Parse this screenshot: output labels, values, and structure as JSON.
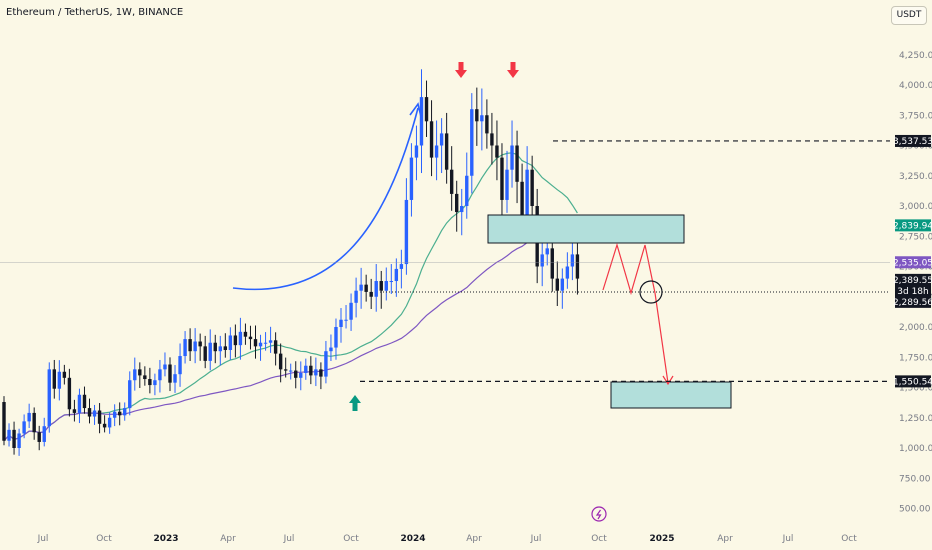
{
  "header": {
    "title": "Ethereum / TetherUS, 1W, BINANCE",
    "currency": "USDT"
  },
  "chart_data": {
    "type": "candlestick",
    "symbol": "ETHUSDT",
    "interval": "1W",
    "exchange": "BINANCE",
    "y_ticks": [
      "4,250.00",
      "4,000.00",
      "3,750.00",
      "3,500.00",
      "3,250.00",
      "3,000.00",
      "2,750.00",
      "2,500.00",
      "2,250.00",
      "2,000.00",
      "1,750.00",
      "1,500.00",
      "1,250.00",
      "1,000.00",
      "750.00",
      "500.00"
    ],
    "y_tick_values": [
      4250,
      4000,
      3750,
      3500,
      3250,
      3000,
      2750,
      2500,
      2250,
      2000,
      1750,
      1500,
      1250,
      1000,
      750,
      500
    ],
    "x_ticks": [
      {
        "label": "Jul",
        "bold": false
      },
      {
        "label": "Oct",
        "bold": false
      },
      {
        "label": "2023",
        "bold": true
      },
      {
        "label": "Apr",
        "bold": false
      },
      {
        "label": "Jul",
        "bold": false
      },
      {
        "label": "Oct",
        "bold": false
      },
      {
        "label": "2024",
        "bold": true
      },
      {
        "label": "Apr",
        "bold": false
      },
      {
        "label": "Jul",
        "bold": false
      },
      {
        "label": "Oct",
        "bold": false
      },
      {
        "label": "2025",
        "bold": true
      },
      {
        "label": "Apr",
        "bold": false
      },
      {
        "label": "Jul",
        "bold": false
      },
      {
        "label": "Oct",
        "bold": false
      }
    ],
    "price_labels": [
      {
        "text": "3,537.53",
        "value": 3537.53,
        "bg": "#131722",
        "fg": "#ffffff"
      },
      {
        "text": "2,839.94",
        "value": 2839.94,
        "bg": "#089981",
        "fg": "#ffffff"
      },
      {
        "text": "2,535.05",
        "value": 2535.05,
        "bg": "#7e57c2",
        "fg": "#ffffff"
      },
      {
        "text": "2,389.55",
        "value": 2389.55,
        "bg": "#131722",
        "fg": "#ffffff"
      },
      {
        "text": "3d 18h",
        "value": 2340,
        "bg": "#131722",
        "fg": "#ffffff"
      },
      {
        "text": "2,289.56",
        "value": 2289.56,
        "bg": "#131722",
        "fg": "#ffffff"
      },
      {
        "text": "1,550.54",
        "value": 1550.54,
        "bg": "#131722",
        "fg": "#ffffff"
      }
    ],
    "closes": [
      1060,
      1150,
      1000,
      1120,
      1220,
      1290,
      1130,
      1050,
      1180,
      1650,
      1490,
      1630,
      1580,
      1320,
      1290,
      1440,
      1330,
      1260,
      1310,
      1200,
      1170,
      1250,
      1300,
      1270,
      1330,
      1560,
      1650,
      1600,
      1570,
      1520,
      1560,
      1650,
      1690,
      1540,
      1610,
      1760,
      1900,
      1800,
      1880,
      1840,
      1720,
      1870,
      1800,
      1840,
      1810,
      1930,
      1850,
      1960,
      1920,
      1900,
      1840,
      1870,
      1870,
      1890,
      1780,
      1650,
      1640,
      1640,
      1580,
      1620,
      1680,
      1600,
      1650,
      1590,
      1800,
      1830,
      2000,
      2060,
      2060,
      2200,
      2300,
      2350,
      2290,
      2250,
      2380,
      2300,
      2380,
      2380,
      2480,
      2520,
      3050,
      3400,
      3500,
      3900,
      3700,
      3400,
      3500,
      3600,
      3300,
      3100,
      2950,
      3000,
      3250,
      3800,
      3700,
      3750,
      3600,
      3500,
      3400,
      3050,
      3300,
      3500,
      3200,
      2900,
      3300,
      3000,
      2500,
      2600,
      2650,
      2400,
      2300,
      2400,
      2500,
      2600,
      2400
    ]
  },
  "annotations": {
    "resistance_level": 3537.53,
    "support_level": 1550.54,
    "dotted_level": 2289.56
  }
}
